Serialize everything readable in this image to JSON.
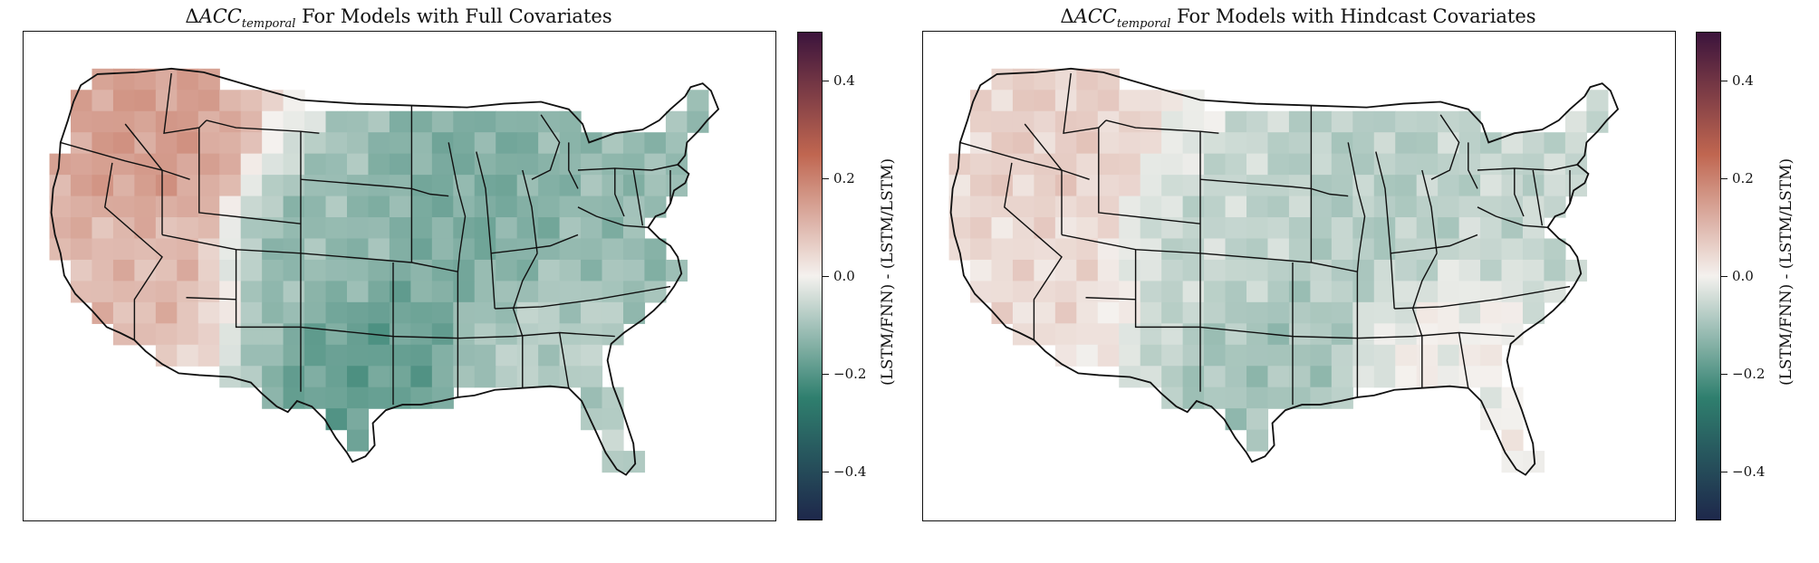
{
  "panels": [
    {
      "title_prefix": "Δ",
      "title_symbol": "ACC",
      "title_subscript": "temporal",
      "title_suffix": "For Models with Full Covariates",
      "colorbar_label": "(LSTM/FNN) - (LSTM/LSTM)",
      "colorbar_ticks": [
        "0.4",
        "0.2",
        "0.0",
        "−0.2",
        "−0.4"
      ]
    },
    {
      "title_prefix": "Δ",
      "title_symbol": "ACC",
      "title_subscript": "temporal",
      "title_suffix": "For Models with Hindcast Covariates",
      "colorbar_label": "(LSTM/FNN) - (LSTM/LSTM)",
      "colorbar_ticks": [
        "0.4",
        "0.2",
        "0.0",
        "−0.2",
        "−0.4"
      ]
    }
  ],
  "map_data": {
    "type": "choropleth-grid",
    "region": "Contiguous United States",
    "value_range": [
      -0.5,
      0.5
    ],
    "colormap": "curl (green negative, red positive)",
    "color_negative": "#2f7f6e",
    "color_zero": "#f4f1ee",
    "color_positive": "#c06650",
    "full_covariates_summary": {
      "west": 0.1,
      "northwest": 0.15,
      "great_plains": -0.12,
      "midwest": -0.15,
      "south_central": -0.18,
      "southeast": -0.08,
      "northeast": -0.12
    },
    "hindcast_covariates_summary": {
      "west": 0.04,
      "northwest": 0.06,
      "great_plains": -0.06,
      "midwest": -0.08,
      "south_central": -0.1,
      "southeast": 0.0,
      "northeast": -0.06
    }
  }
}
